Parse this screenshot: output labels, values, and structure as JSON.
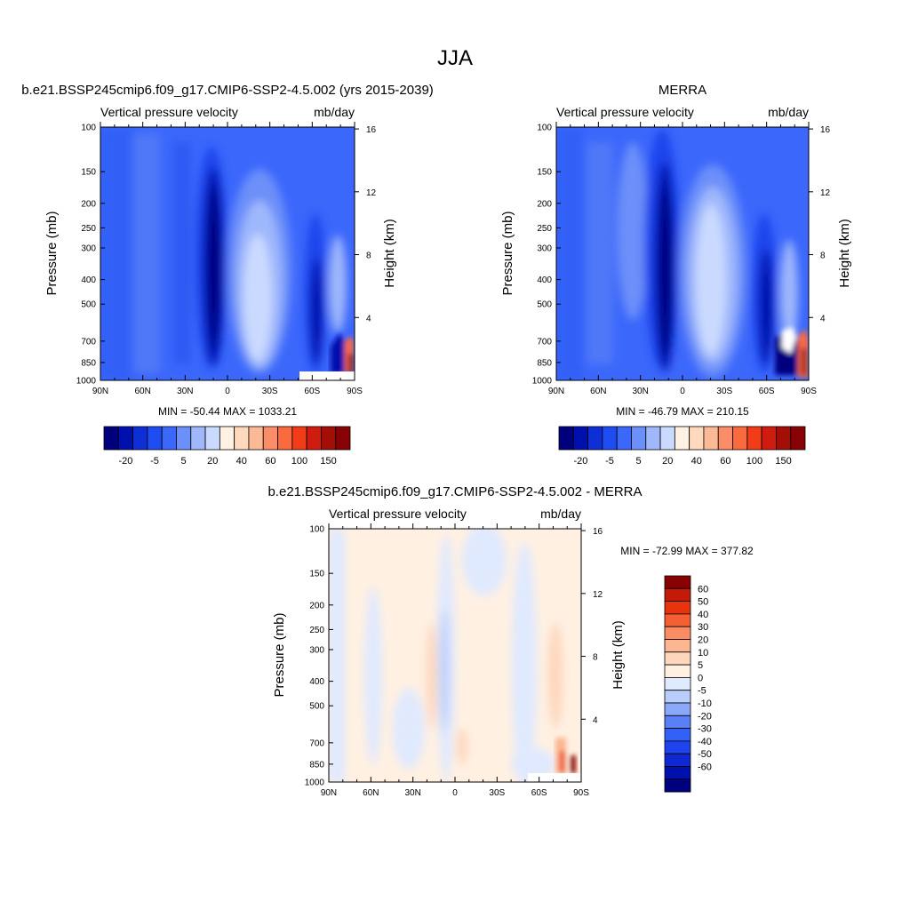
{
  "page": {
    "title": "JJA"
  },
  "colors": {
    "abs_palette": [
      "#00007f",
      "#0010ad",
      "#0f2fd6",
      "#1f4df2",
      "#3b67fb",
      "#6c8ff9",
      "#9fb7fb",
      "#cadaff",
      "#fff1e3",
      "#ffd9bd",
      "#fcb996",
      "#fb8e68",
      "#fa6a3f",
      "#f23c17",
      "#d01c0e",
      "#a30e07",
      "#870303"
    ],
    "diff_palette": [
      "#00007f",
      "#0010ad",
      "#1028d0",
      "#1f44ed",
      "#3361f7",
      "#5a80f7",
      "#8ba7f7",
      "#b9cdfa",
      "#dfe9ff",
      "#fff0e2",
      "#fdd6bb",
      "#fcb692",
      "#fb8b63",
      "#f55f34",
      "#e7340f",
      "#c41a09",
      "#870303"
    ]
  },
  "chart_data": [
    {
      "type": "heatmap",
      "id": "model",
      "title": "b.e21.BSSP245cmip6.f09_g17.CMIP6-SSP2-4.5.002 (yrs 2015-2039)",
      "left_label": "Vertical pressure velocity",
      "right_label": "mb/day",
      "xlabel": "",
      "ylabel": "Pressure (mb)",
      "y2label": "Height (km)",
      "x_ticks": [
        "90N",
        "60N",
        "30N",
        "0",
        "30S",
        "60S",
        "90S"
      ],
      "y_ticks": [
        100,
        150,
        200,
        250,
        300,
        400,
        500,
        700,
        850,
        1000
      ],
      "y2_ticks": [
        4,
        8,
        12,
        16
      ],
      "stats": "MIN = -50.44  MAX = 1033.21",
      "colorbar_labels": [
        "-20",
        "-5",
        "5",
        "20",
        "40",
        "60",
        "100",
        "150"
      ],
      "ylim": [
        1000,
        100
      ],
      "xlim": [
        90,
        -90
      ]
    },
    {
      "type": "heatmap",
      "id": "obs",
      "title": "MERRA",
      "left_label": "Vertical pressure velocity",
      "right_label": "mb/day",
      "xlabel": "",
      "ylabel": "Pressure (mb)",
      "y2label": "Height (km)",
      "x_ticks": [
        "90N",
        "60N",
        "30N",
        "0",
        "30S",
        "60S",
        "90S"
      ],
      "y_ticks": [
        100,
        150,
        200,
        250,
        300,
        400,
        500,
        700,
        850,
        1000
      ],
      "y2_ticks": [
        4,
        8,
        12,
        16
      ],
      "stats": "MIN = -46.79  MAX = 210.15",
      "colorbar_labels": [
        "-20",
        "-5",
        "5",
        "20",
        "40",
        "60",
        "100",
        "150"
      ],
      "ylim": [
        1000,
        100
      ],
      "xlim": [
        90,
        -90
      ]
    },
    {
      "type": "heatmap",
      "id": "diff",
      "title": "b.e21.BSSP245cmip6.f09_g17.CMIP6-SSP2-4.5.002 - MERRA",
      "left_label": "Vertical pressure velocity",
      "right_label": "mb/day",
      "xlabel": "",
      "ylabel": "Pressure (mb)",
      "y2label": "Height (km)",
      "x_ticks": [
        "90N",
        "60N",
        "30N",
        "0",
        "30S",
        "60S",
        "90S"
      ],
      "y_ticks": [
        100,
        150,
        200,
        250,
        300,
        400,
        500,
        700,
        850,
        1000
      ],
      "y2_ticks": [
        4,
        8,
        12,
        16
      ],
      "stats": "MIN = -72.99  MAX = 377.82",
      "colorbar_labels": [
        "60",
        "50",
        "40",
        "30",
        "20",
        "10",
        "5",
        "0",
        "-5",
        "-10",
        "-20",
        "-30",
        "-40",
        "-50",
        "-60"
      ],
      "ylim": [
        1000,
        100
      ],
      "xlim": [
        90,
        -90
      ]
    }
  ]
}
